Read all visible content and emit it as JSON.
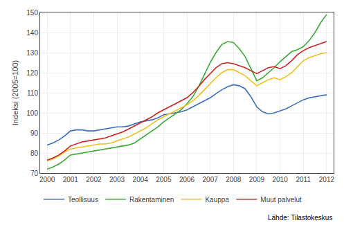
{
  "chart_data": {
    "type": "line",
    "ylabel": "Indeksi (2005=100)",
    "annotations": [
      "Lähde: Tilastokeskus"
    ],
    "x": [
      2000.0,
      2000.25,
      2000.5,
      2000.75,
      2001.0,
      2001.25,
      2001.5,
      2001.75,
      2002.0,
      2002.25,
      2002.5,
      2002.75,
      2003.0,
      2003.25,
      2003.5,
      2003.75,
      2004.0,
      2004.25,
      2004.5,
      2004.75,
      2005.0,
      2005.25,
      2005.5,
      2005.75,
      2006.0,
      2006.25,
      2006.5,
      2006.75,
      2007.0,
      2007.25,
      2007.5,
      2007.75,
      2008.0,
      2008.25,
      2008.5,
      2008.75,
      2009.0,
      2009.25,
      2009.5,
      2009.75,
      2010.0,
      2010.25,
      2010.5,
      2010.75,
      2011.0,
      2011.25,
      2011.5,
      2011.75,
      2012.0
    ],
    "series": [
      {
        "name": "Teollisuus",
        "color": "#3c6ebf",
        "values": [
          84.0,
          85.0,
          86.5,
          88.5,
          91.0,
          91.5,
          91.5,
          91.0,
          91.0,
          91.5,
          92.0,
          92.5,
          93.0,
          93.0,
          93.5,
          94.5,
          95.5,
          96.0,
          96.5,
          97.5,
          99.0,
          99.5,
          100.0,
          100.5,
          101.5,
          103.0,
          104.5,
          106.0,
          107.5,
          109.5,
          111.5,
          113.0,
          114.0,
          113.5,
          112.0,
          108.0,
          103.0,
          100.5,
          99.5,
          100.0,
          101.0,
          102.0,
          103.5,
          105.0,
          106.5,
          107.5,
          108.0,
          108.5,
          109.0
        ]
      },
      {
        "name": "Rakentaminen",
        "color": "#3aaa35",
        "values": [
          72.0,
          73.0,
          74.5,
          76.5,
          79.0,
          79.5,
          80.0,
          80.5,
          81.0,
          81.5,
          82.0,
          82.5,
          83.0,
          83.5,
          84.0,
          85.0,
          87.0,
          89.0,
          91.0,
          93.0,
          95.5,
          97.5,
          99.5,
          101.5,
          104.5,
          108.0,
          113.0,
          119.0,
          125.0,
          130.0,
          134.0,
          135.5,
          135.0,
          132.0,
          128.0,
          122.0,
          116.0,
          117.5,
          120.0,
          122.5,
          125.5,
          128.0,
          130.5,
          131.5,
          133.0,
          136.0,
          140.0,
          145.0,
          149.0
        ]
      },
      {
        "name": "Kauppa",
        "color": "#f0c020",
        "values": [
          76.0,
          77.0,
          78.5,
          80.5,
          82.0,
          82.5,
          83.0,
          83.5,
          84.0,
          84.5,
          84.5,
          85.0,
          86.0,
          87.0,
          88.0,
          89.5,
          91.0,
          92.5,
          94.5,
          96.5,
          98.0,
          99.5,
          101.0,
          102.5,
          104.0,
          106.0,
          108.5,
          111.5,
          114.5,
          117.5,
          120.0,
          121.5,
          121.5,
          120.0,
          118.5,
          116.0,
          113.5,
          115.0,
          116.5,
          117.5,
          116.5,
          118.0,
          120.0,
          123.0,
          126.0,
          127.5,
          128.5,
          129.5,
          130.0
        ]
      },
      {
        "name": "Muut palvelut",
        "color": "#cc2222",
        "values": [
          76.5,
          77.5,
          79.0,
          81.0,
          83.5,
          84.5,
          85.5,
          86.0,
          86.5,
          87.0,
          87.5,
          88.5,
          89.5,
          90.5,
          92.0,
          93.5,
          95.0,
          96.5,
          98.0,
          100.0,
          101.5,
          103.0,
          104.5,
          106.0,
          107.5,
          110.0,
          113.0,
          116.5,
          119.5,
          122.5,
          124.5,
          125.0,
          124.5,
          123.5,
          122.5,
          121.0,
          119.5,
          121.0,
          122.5,
          123.0,
          122.0,
          123.5,
          126.0,
          129.0,
          131.0,
          132.5,
          133.5,
          134.5,
          135.5
        ]
      }
    ],
    "xlim": [
      1999.7,
      2012.3
    ],
    "xticks": [
      2000,
      2001,
      2002,
      2003,
      2004,
      2005,
      2006,
      2007,
      2008,
      2009,
      2010,
      2011,
      2012
    ],
    "ylim": [
      70,
      150
    ],
    "yticks": [
      70,
      80,
      90,
      100,
      110,
      120,
      130,
      140,
      150
    ],
    "grid": true,
    "legend": "bottom"
  }
}
